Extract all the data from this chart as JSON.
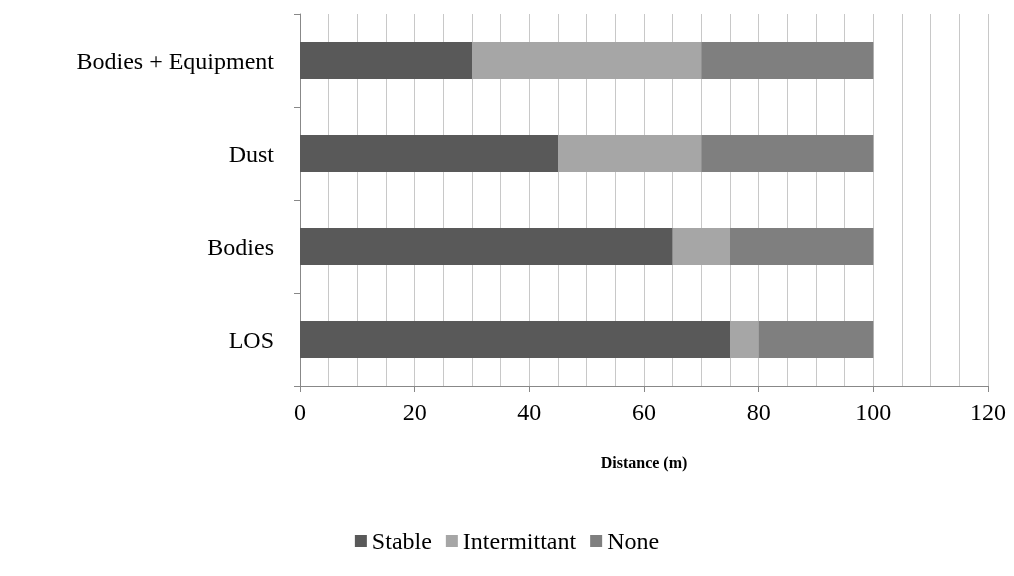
{
  "chart_data": {
    "type": "bar",
    "orientation": "horizontal",
    "stacked": true,
    "xlabel": "Distance (m)",
    "categories": [
      "Bodies + Equipment",
      "Dust",
      "Bodies",
      "LOS"
    ],
    "series": [
      {
        "name": "Stable",
        "color": "#595959",
        "values": [
          30,
          45,
          65,
          75
        ]
      },
      {
        "name": "Intermittant",
        "color": "#a6a6a6",
        "values": [
          40,
          25,
          10,
          5
        ]
      },
      {
        "name": "None",
        "color": "#7f7f7f",
        "values": [
          30,
          30,
          25,
          20
        ]
      }
    ],
    "xlim": [
      0,
      120
    ],
    "xticks": [
      0,
      {
        "value": 5,
        "label": null
      },
      {
        "value": 10,
        "label": null
      },
      {
        "value": 15,
        "label": null
      },
      20,
      {
        "value": 25,
        "label": null
      },
      {
        "value": 30,
        "label": null
      },
      {
        "value": 35,
        "label": null
      },
      40,
      {
        "value": 45,
        "label": null
      },
      {
        "value": 50,
        "label": null
      },
      {
        "value": 55,
        "label": null
      },
      60,
      {
        "value": 65,
        "label": null
      },
      {
        "value": 70,
        "label": null
      },
      {
        "value": 75,
        "label": null
      },
      80,
      {
        "value": 85,
        "label": null
      },
      {
        "value": 90,
        "label": null
      },
      {
        "value": 95,
        "label": null
      },
      100,
      {
        "value": 105,
        "label": null
      },
      {
        "value": 110,
        "label": null
      },
      {
        "value": 115,
        "label": null
      },
      120
    ],
    "grid": "x",
    "legend": "bottom"
  }
}
